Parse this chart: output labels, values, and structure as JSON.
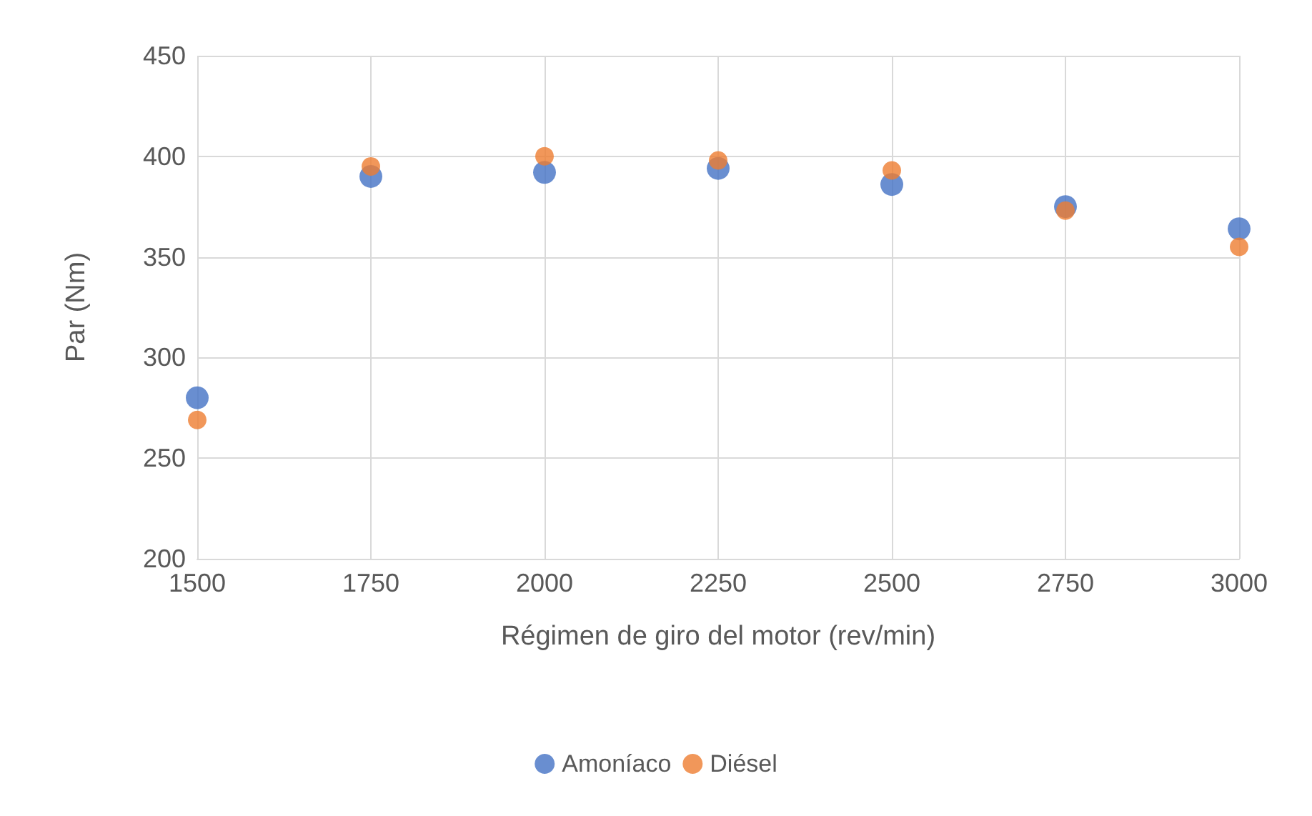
{
  "chart_data": {
    "type": "scatter",
    "xlabel": "Régimen de giro del motor (rev/min)",
    "ylabel": "Par (Nm)",
    "x": [
      1500,
      1750,
      2000,
      2250,
      2500,
      2750,
      3000
    ],
    "series": [
      {
        "name": "Amoníaco",
        "color": "#4472c4",
        "values": [
          280,
          390,
          392,
          394,
          386,
          375,
          364
        ]
      },
      {
        "name": "Diésel",
        "color": "#ed7d31",
        "values": [
          269,
          395,
          400,
          398,
          393,
          373,
          355
        ]
      }
    ],
    "xlim": [
      1500,
      3000
    ],
    "xticks": [
      1500,
      1750,
      2000,
      2250,
      2500,
      2750,
      3000
    ],
    "ylim": [
      200,
      450
    ],
    "yticks": [
      200,
      250,
      300,
      350,
      400,
      450
    ],
    "grid": true,
    "legend": "bottom",
    "marker": "circle"
  }
}
